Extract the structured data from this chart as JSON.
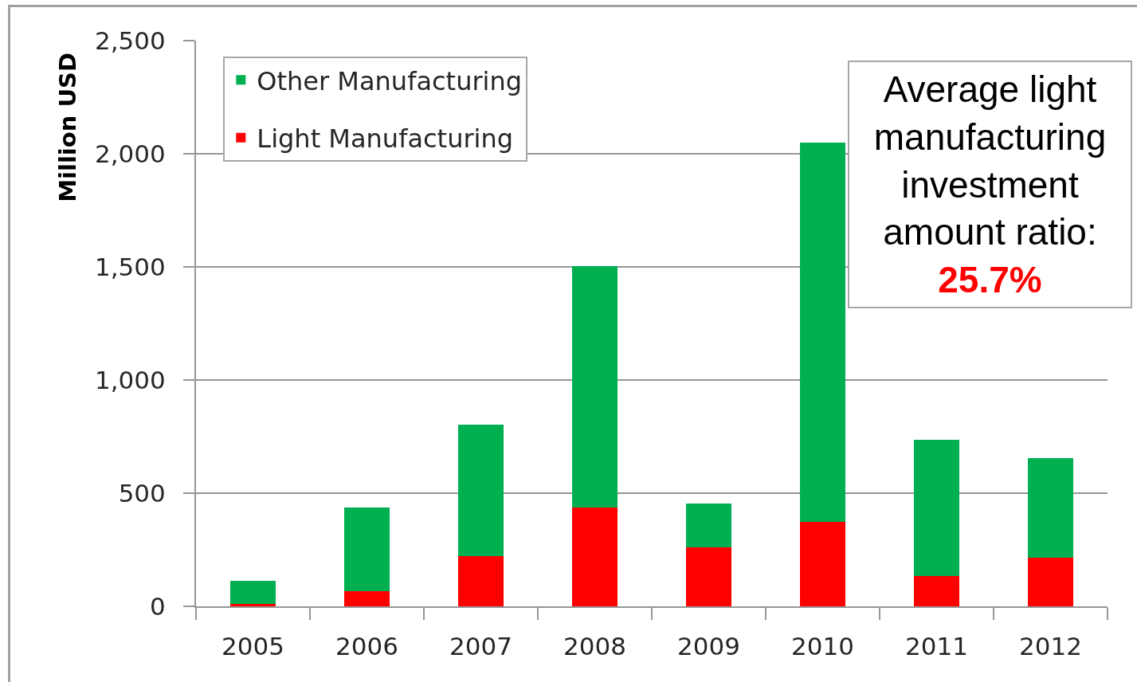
{
  "chart_data": {
    "type": "bar",
    "ylabel": "Million USD",
    "categories": [
      "2005",
      "2006",
      "2007",
      "2008",
      "2009",
      "2010",
      "2011",
      "2012"
    ],
    "series": [
      {
        "name": "Light Manufacturing",
        "color": "#ff0000",
        "values": [
          10,
          68,
          221,
          436,
          262,
          374,
          134,
          214
        ]
      },
      {
        "name": "Other Manufacturing",
        "color": "#00b050",
        "values": [
          104,
          367,
          582,
          1069,
          192,
          1675,
          601,
          442
        ]
      }
    ],
    "stacked": true,
    "ylim": [
      0,
      2500
    ],
    "yticks": [
      0,
      500,
      {
        "value": 1000,
        "label": "1,000"
      },
      {
        "value": 1500,
        "label": "1,500"
      },
      {
        "value": 2000,
        "label": "2,000"
      },
      {
        "value": 2500,
        "label": "2,500"
      }
    ],
    "grid": "y",
    "legend": "top left",
    "annotations": [
      "Average light manufacturing investment amount ratio:",
      "25.7%"
    ]
  }
}
